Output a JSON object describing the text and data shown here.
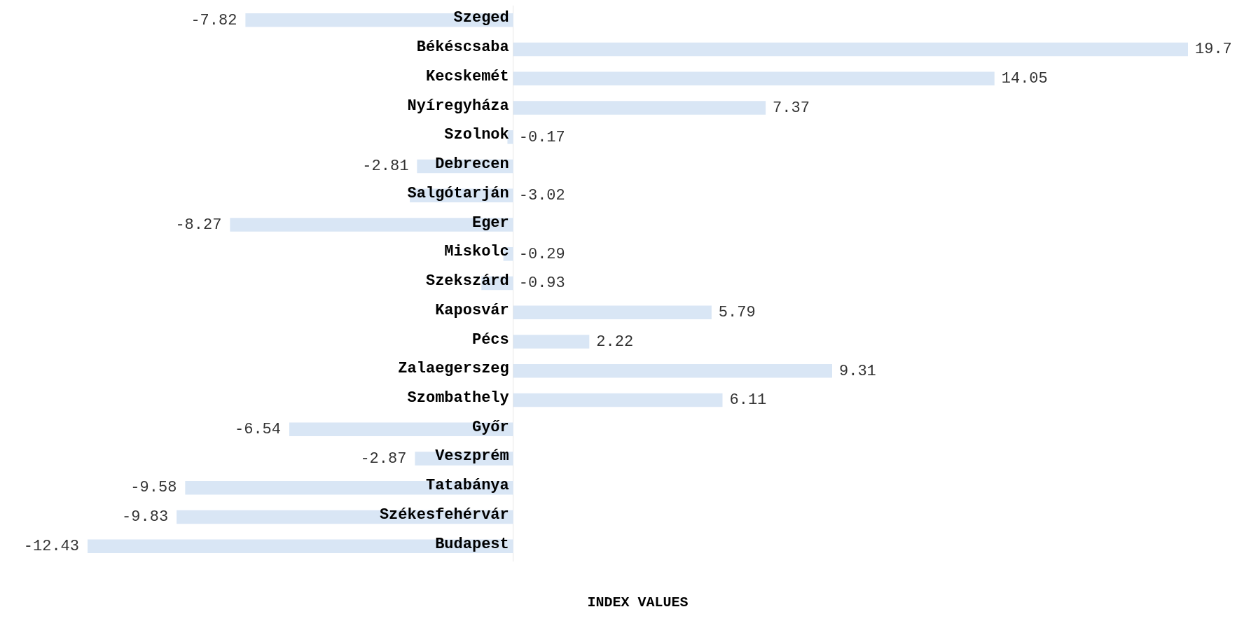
{
  "chart_data": {
    "type": "bar",
    "orientation": "horizontal",
    "xlabel": "INDEX VALUES",
    "categories": [
      "Szeged",
      "Békéscsaba",
      "Kecskemét",
      "Nyíregyháza",
      "Szolnok",
      "Debrecen",
      "Salgótarján",
      "Eger",
      "Miskolc",
      "Szekszárd",
      "Kaposvár",
      "Pécs",
      "Zalaegerszeg",
      "Szombathely",
      "Győr",
      "Veszprém",
      "Tatabánya",
      "Székesfehérvár",
      "Budapest"
    ],
    "values": [
      -7.82,
      19.7,
      14.05,
      7.37,
      -0.17,
      -2.81,
      -3.02,
      -8.27,
      -0.29,
      -0.93,
      5.79,
      2.22,
      9.31,
      6.11,
      -6.54,
      -2.87,
      -9.58,
      -9.83,
      -12.43
    ],
    "color": "#d9e6f5",
    "data_labels": true,
    "grid": false,
    "legend": false,
    "tick_labels": "y"
  }
}
